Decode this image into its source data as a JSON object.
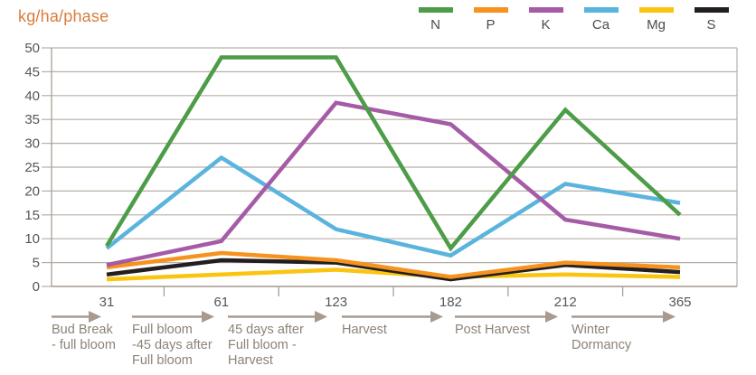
{
  "title": "kg/ha/phase",
  "legend": {
    "items": [
      {
        "label": "N",
        "color": "#4d9c48"
      },
      {
        "label": "P",
        "color": "#f6921e"
      },
      {
        "label": "K",
        "color": "#a55ba5"
      },
      {
        "label": "Ca",
        "color": "#5ab4dd"
      },
      {
        "label": "Mg",
        "color": "#fbc40f"
      },
      {
        "label": "S",
        "color": "#231f20"
      }
    ]
  },
  "chart_data": {
    "type": "line",
    "title": "kg/ha/phase",
    "ylabel": "kg/ha/phase",
    "xlabel": "",
    "x_labels": [
      "31",
      "61",
      "123",
      "182",
      "212",
      "365"
    ],
    "x_values": [
      31,
      61,
      123,
      182,
      212,
      365
    ],
    "ylim": [
      0,
      50
    ],
    "ytick_step": 5,
    "grid": true,
    "legend_position": "top-right",
    "series": [
      {
        "name": "N",
        "color": "#4d9c48",
        "values": [
          8.5,
          48,
          48,
          8,
          37,
          15
        ]
      },
      {
        "name": "P",
        "color": "#f6921e",
        "values": [
          4,
          7,
          5.5,
          2,
          5,
          4
        ]
      },
      {
        "name": "K",
        "color": "#a55ba5",
        "values": [
          4.5,
          9.5,
          38.5,
          34,
          14,
          10
        ]
      },
      {
        "name": "Ca",
        "color": "#5ab4dd",
        "values": [
          8,
          27,
          12,
          6.5,
          21.5,
          17.5
        ]
      },
      {
        "name": "Mg",
        "color": "#fbc40f",
        "values": [
          1.5,
          2.5,
          3.5,
          2,
          2.5,
          2
        ]
      },
      {
        "name": "S",
        "color": "#231f20",
        "values": [
          2.5,
          5.5,
          5,
          1.5,
          4.5,
          3
        ]
      }
    ],
    "draw_order": [
      "Mg",
      "S",
      "P",
      "Ca",
      "K",
      "N"
    ],
    "phases": [
      {
        "lines": [
          "Bud Break",
          "- full bloom"
        ]
      },
      {
        "lines": [
          "Full bloom",
          "-45 days after",
          "Full bloom"
        ]
      },
      {
        "lines": [
          "45 days after",
          "Full bloom -",
          "Harvest"
        ]
      },
      {
        "lines": [
          "Harvest"
        ]
      },
      {
        "lines": [
          "Post Harvest"
        ]
      },
      {
        "lines": [
          "Winter",
          "Dormancy"
        ]
      }
    ]
  },
  "colors": {
    "title": "#d97c3a",
    "axis_text": "#55565a",
    "grid": "#b7afa6",
    "axis_line": "#a9a096",
    "arrow": "#a79b8f",
    "phase_text": "#8d8277",
    "legend_text": "#4b4c50",
    "background": "#ffffff"
  }
}
